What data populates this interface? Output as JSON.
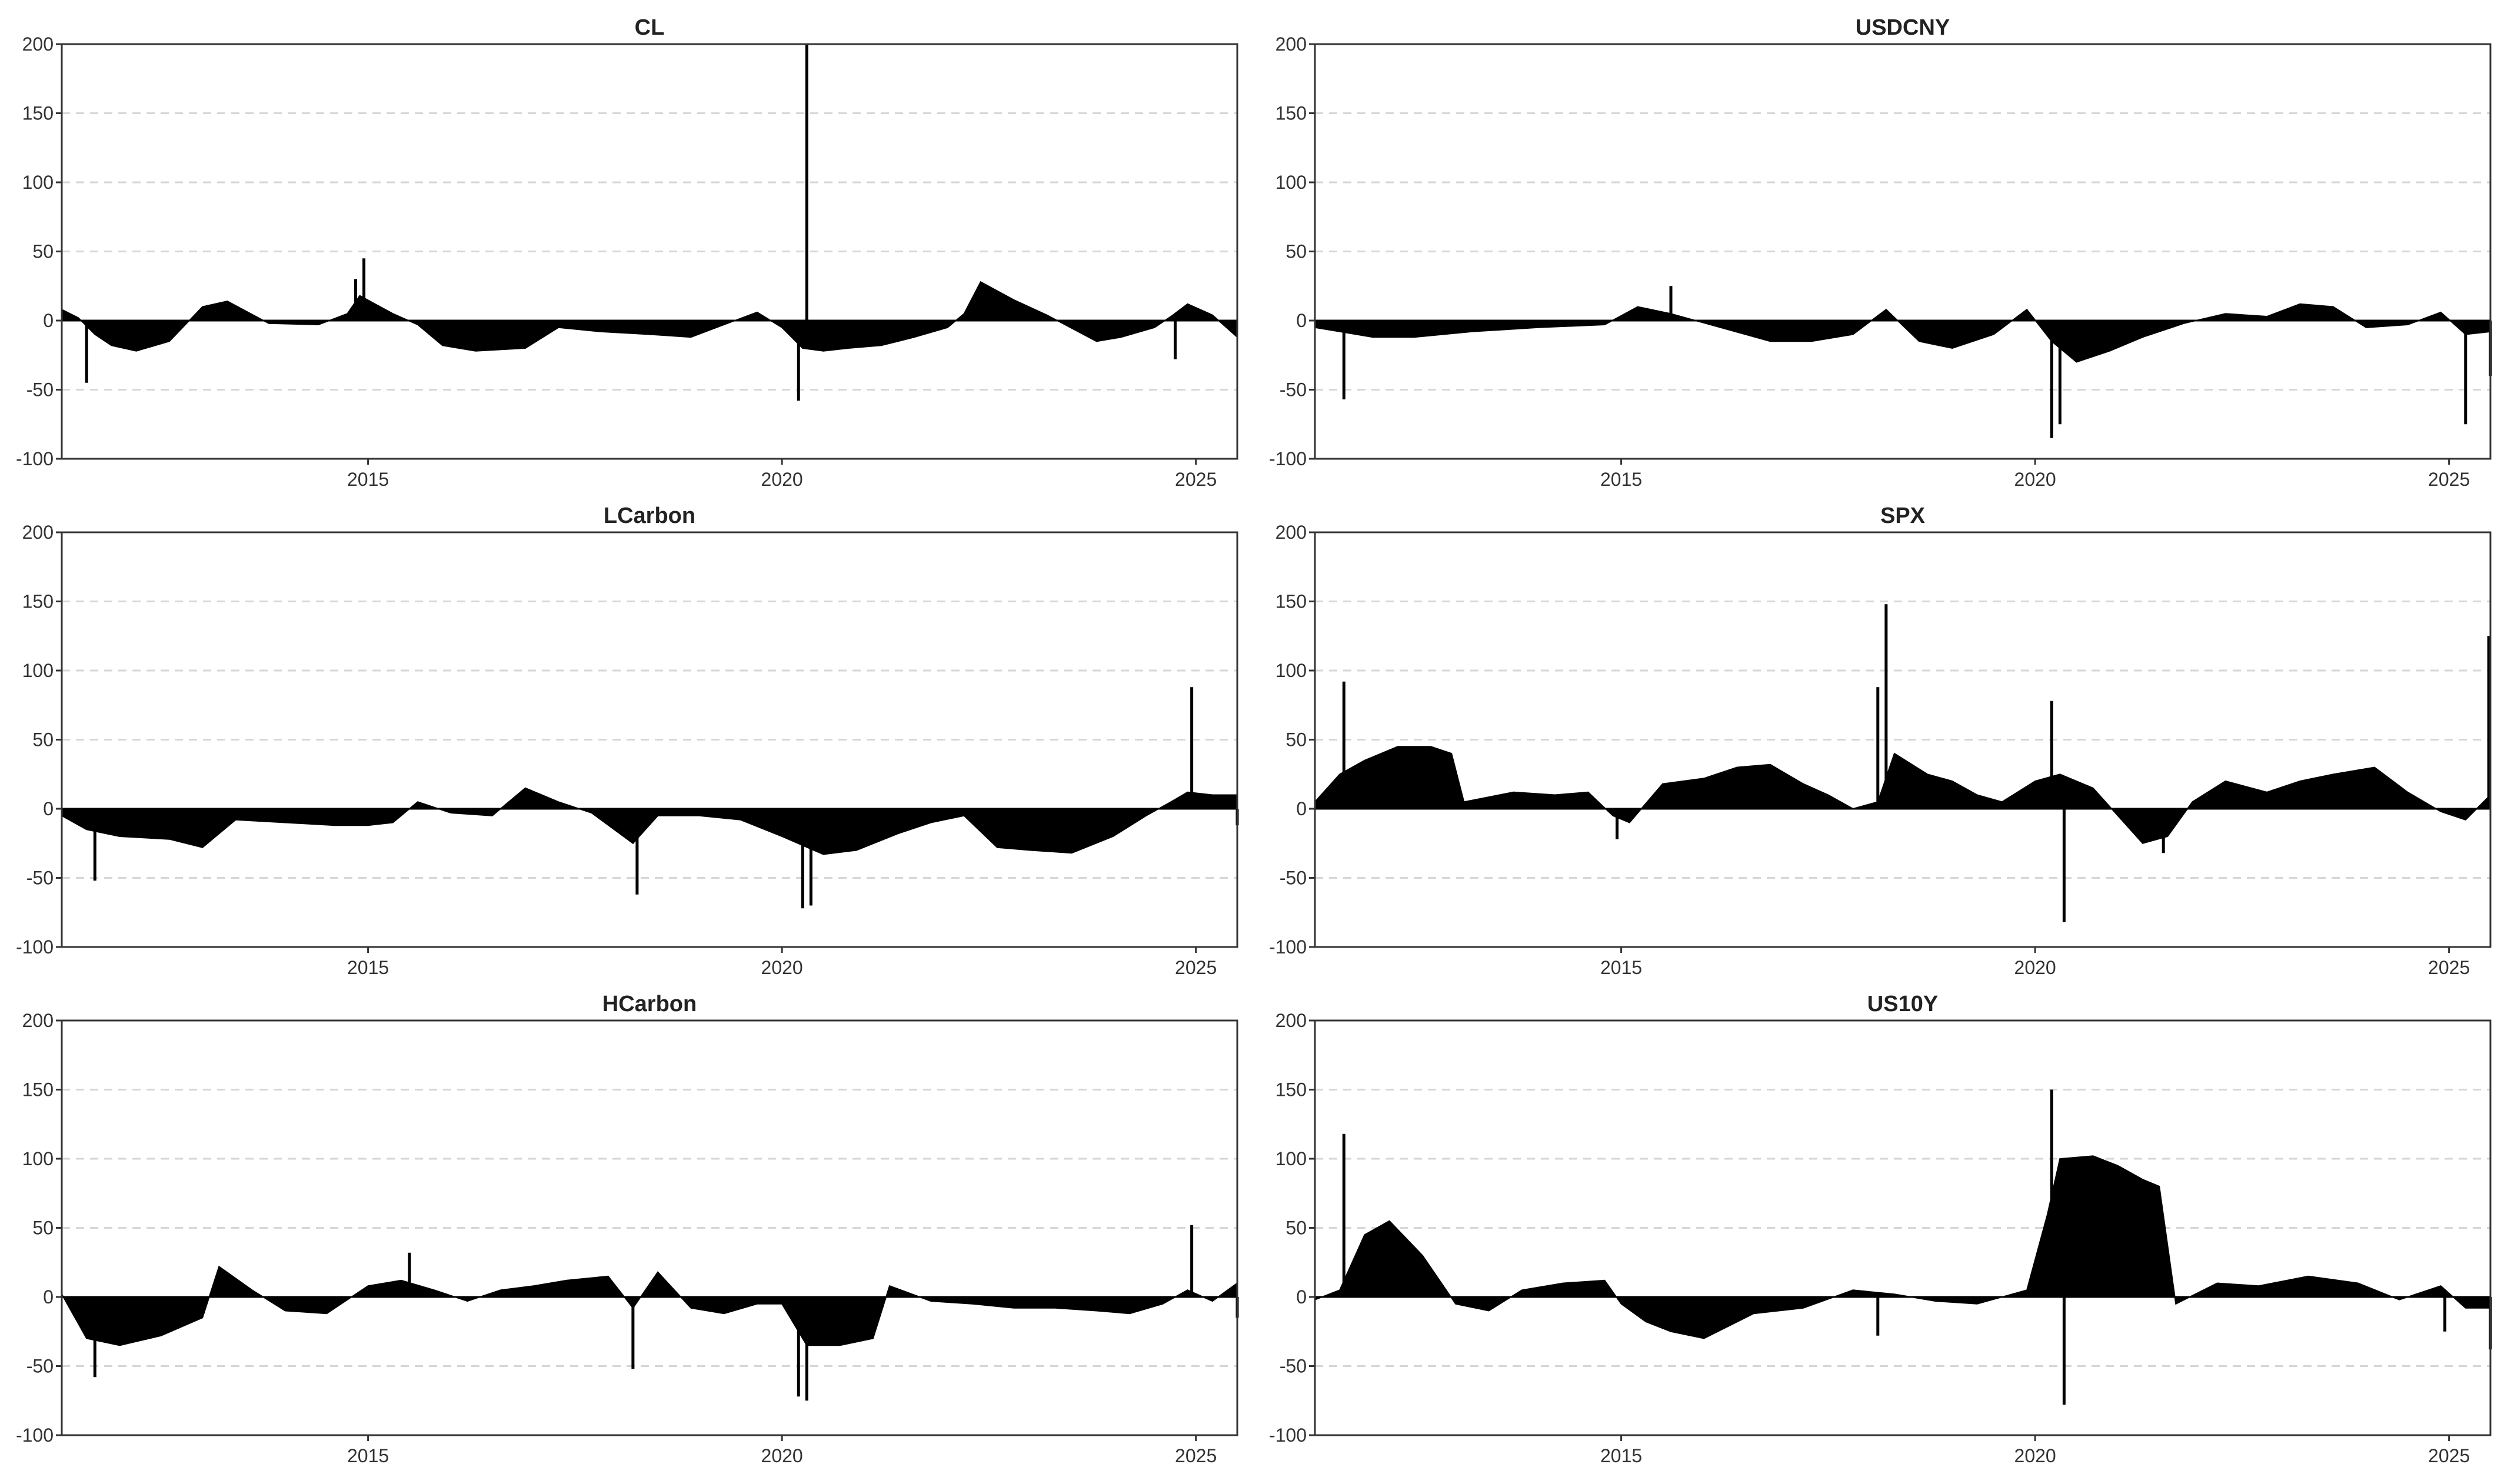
{
  "chart_data": [
    {
      "type": "area",
      "title": "CL",
      "ylim": [
        -100,
        200
      ],
      "yticks": [
        200,
        150,
        100,
        50,
        0,
        -50,
        -100
      ],
      "xlim": [
        2011.3,
        2025.5
      ],
      "xticks": [
        "2015",
        "2020",
        "2025"
      ],
      "grid": "horizontal-dashed",
      "x": [
        2011.3,
        2011.5,
        2011.7,
        2011.9,
        2012.2,
        2012.6,
        2013.0,
        2013.3,
        2013.8,
        2014.4,
        2014.75,
        2014.9,
        2015.3,
        2015.6,
        2015.9,
        2016.3,
        2016.9,
        2017.3,
        2017.8,
        2018.4,
        2018.9,
        2019.3,
        2019.7,
        2020.0,
        2020.25,
        2020.5,
        2020.8,
        2021.2,
        2021.6,
        2022.0,
        2022.2,
        2022.4,
        2022.8,
        2023.2,
        2023.8,
        2024.1,
        2024.5,
        2024.7,
        2024.9,
        2025.2,
        2025.5
      ],
      "values": [
        8,
        2,
        -10,
        -18,
        -22,
        -15,
        10,
        14,
        -2,
        -3,
        5,
        18,
        5,
        -3,
        -18,
        -22,
        -20,
        -5,
        -8,
        -10,
        -12,
        -3,
        6,
        -5,
        -20,
        -22,
        -20,
        -18,
        -12,
        -5,
        5,
        28,
        15,
        4,
        -15,
        -12,
        -5,
        3,
        12,
        4,
        -12
      ],
      "spikes": [
        {
          "x": 2011.6,
          "value": -45
        },
        {
          "x": 2014.85,
          "value": 30
        },
        {
          "x": 2014.95,
          "value": 45
        },
        {
          "x": 2020.2,
          "value": -58
        },
        {
          "x": 2020.3,
          "value": 200
        },
        {
          "x": 2024.75,
          "value": -28
        }
      ]
    },
    {
      "type": "area",
      "title": "USDCNY",
      "ylim": [
        -100,
        200
      ],
      "yticks": [
        200,
        150,
        100,
        50,
        0,
        -50,
        -100
      ],
      "xlim": [
        2011.3,
        2025.5
      ],
      "xticks": [
        "2015",
        "2020",
        "2025"
      ],
      "grid": "horizontal-dashed",
      "x": [
        2011.3,
        2011.6,
        2012.0,
        2012.5,
        2013.2,
        2014.0,
        2014.8,
        2015.2,
        2015.6,
        2016.2,
        2016.8,
        2017.3,
        2017.8,
        2018.2,
        2018.6,
        2019.0,
        2019.5,
        2019.9,
        2020.2,
        2020.5,
        2020.9,
        2021.3,
        2021.8,
        2022.3,
        2022.8,
        2023.2,
        2023.6,
        2024.0,
        2024.5,
        2024.9,
        2025.2,
        2025.5
      ],
      "values": [
        -5,
        -8,
        -12,
        -12,
        -8,
        -5,
        -3,
        10,
        5,
        -5,
        -15,
        -15,
        -10,
        8,
        -15,
        -20,
        -10,
        8,
        -15,
        -30,
        -22,
        -12,
        -2,
        5,
        3,
        12,
        10,
        -5,
        -3,
        6,
        -10,
        -8
      ],
      "spikes": [
        {
          "x": 2011.65,
          "value": -57
        },
        {
          "x": 2015.6,
          "value": 25
        },
        {
          "x": 2020.2,
          "value": -85
        },
        {
          "x": 2020.3,
          "value": -75
        },
        {
          "x": 2025.2,
          "value": -75
        },
        {
          "x": 2025.5,
          "value": -40
        }
      ]
    },
    {
      "type": "area",
      "title": "LCarbon",
      "ylim": [
        -100,
        200
      ],
      "yticks": [
        200,
        150,
        100,
        50,
        0,
        -50,
        -100
      ],
      "xlim": [
        2011.3,
        2025.5
      ],
      "xticks": [
        "2015",
        "2020",
        "2025"
      ],
      "grid": "horizontal-dashed",
      "x": [
        2011.3,
        2011.6,
        2012.0,
        2012.6,
        2013.0,
        2013.4,
        2014.0,
        2014.6,
        2015.0,
        2015.3,
        2015.6,
        2016.0,
        2016.5,
        2016.9,
        2017.3,
        2017.7,
        2018.2,
        2018.5,
        2019.0,
        2019.5,
        2020.0,
        2020.5,
        2020.9,
        2021.4,
        2021.8,
        2022.2,
        2022.6,
        2023.0,
        2023.5,
        2024.0,
        2024.4,
        2024.7,
        2024.9,
        2025.2,
        2025.5
      ],
      "values": [
        -5,
        -15,
        -20,
        -22,
        -28,
        -8,
        -10,
        -12,
        -12,
        -10,
        5,
        -3,
        -5,
        15,
        5,
        -3,
        -25,
        -5,
        -5,
        -8,
        -20,
        -33,
        -30,
        -18,
        -10,
        -5,
        -28,
        -30,
        -32,
        -20,
        -5,
        5,
        12,
        10,
        10
      ],
      "spikes": [
        {
          "x": 2011.7,
          "value": -52
        },
        {
          "x": 2018.25,
          "value": -62
        },
        {
          "x": 2020.25,
          "value": -72
        },
        {
          "x": 2020.35,
          "value": -70
        },
        {
          "x": 2024.95,
          "value": 88
        },
        {
          "x": 2025.5,
          "value": -12
        }
      ]
    },
    {
      "type": "area",
      "title": "SPX",
      "ylim": [
        -100,
        200
      ],
      "yticks": [
        200,
        150,
        100,
        50,
        0,
        -50,
        -100
      ],
      "xlim": [
        2011.3,
        2025.5
      ],
      "xticks": [
        "2015",
        "2020",
        "2025"
      ],
      "grid": "horizontal-dashed",
      "x": [
        2011.3,
        2011.6,
        2011.9,
        2012.3,
        2012.7,
        2012.95,
        2013.1,
        2013.7,
        2014.2,
        2014.6,
        2014.9,
        2015.1,
        2015.5,
        2016.0,
        2016.4,
        2016.8,
        2017.2,
        2017.5,
        2017.8,
        2018.1,
        2018.3,
        2018.7,
        2019.0,
        2019.3,
        2019.6,
        2020.0,
        2020.3,
        2020.7,
        2021.0,
        2021.3,
        2021.6,
        2021.9,
        2022.3,
        2022.8,
        2023.2,
        2023.6,
        2024.1,
        2024.5,
        2024.9,
        2025.2,
        2025.5
      ],
      "values": [
        5,
        25,
        35,
        45,
        45,
        40,
        5,
        12,
        10,
        12,
        -5,
        -10,
        18,
        22,
        30,
        32,
        18,
        10,
        0,
        5,
        40,
        25,
        20,
        10,
        5,
        20,
        25,
        15,
        -5,
        -25,
        -20,
        5,
        20,
        12,
        20,
        25,
        30,
        12,
        -2,
        -8,
        10
      ],
      "spikes": [
        {
          "x": 2011.65,
          "value": 92
        },
        {
          "x": 2014.95,
          "value": -22
        },
        {
          "x": 2018.2,
          "value": 148
        },
        {
          "x": 2018.1,
          "value": 88
        },
        {
          "x": 2020.2,
          "value": 78
        },
        {
          "x": 2020.35,
          "value": -82
        },
        {
          "x": 2021.55,
          "value": -32
        },
        {
          "x": 2025.48,
          "value": 125
        }
      ]
    },
    {
      "type": "area",
      "title": "HCarbon",
      "ylim": [
        -100,
        200
      ],
      "yticks": [
        200,
        150,
        100,
        50,
        0,
        -50,
        -100
      ],
      "xlim": [
        2011.3,
        2025.5
      ],
      "xticks": [
        "2015",
        "2020",
        "2025"
      ],
      "grid": "horizontal-dashed",
      "x": [
        2011.3,
        2011.6,
        2012.0,
        2012.5,
        2013.0,
        2013.2,
        2013.6,
        2014.0,
        2014.5,
        2015.0,
        2015.4,
        2015.8,
        2016.2,
        2016.6,
        2017.0,
        2017.4,
        2017.9,
        2018.2,
        2018.5,
        2018.9,
        2019.3,
        2019.7,
        2020.0,
        2020.3,
        2020.7,
        2021.1,
        2021.3,
        2021.8,
        2022.3,
        2022.8,
        2023.3,
        2023.8,
        2024.2,
        2024.6,
        2024.9,
        2025.2,
        2025.5
      ],
      "values": [
        2,
        -30,
        -35,
        -28,
        -15,
        22,
        5,
        -10,
        -12,
        8,
        12,
        5,
        -3,
        5,
        8,
        12,
        15,
        -8,
        18,
        -8,
        -12,
        -5,
        -5,
        -35,
        -35,
        -30,
        8,
        -3,
        -5,
        -8,
        -8,
        -10,
        -12,
        -5,
        5,
        -3,
        10
      ],
      "spikes": [
        {
          "x": 2011.7,
          "value": -58
        },
        {
          "x": 2015.5,
          "value": 32
        },
        {
          "x": 2018.2,
          "value": -52
        },
        {
          "x": 2020.2,
          "value": -72
        },
        {
          "x": 2020.3,
          "value": -75
        },
        {
          "x": 2024.95,
          "value": 52
        },
        {
          "x": 2025.5,
          "value": -15
        }
      ]
    },
    {
      "type": "area",
      "title": "US10Y",
      "ylim": [
        -100,
        200
      ],
      "yticks": [
        200,
        150,
        100,
        50,
        0,
        -50,
        -100
      ],
      "xlim": [
        2011.3,
        2025.5
      ],
      "xticks": [
        "2015",
        "2020",
        "2025"
      ],
      "grid": "horizontal-dashed",
      "x": [
        2011.3,
        2011.6,
        2011.9,
        2012.2,
        2012.6,
        2013.0,
        2013.4,
        2013.8,
        2014.3,
        2014.8,
        2015.0,
        2015.3,
        2015.6,
        2016.0,
        2016.6,
        2017.2,
        2017.8,
        2018.3,
        2018.8,
        2019.3,
        2019.9,
        2020.15,
        2020.3,
        2020.7,
        2021.0,
        2021.3,
        2021.5,
        2021.7,
        2022.2,
        2022.7,
        2023.3,
        2023.9,
        2024.4,
        2024.9,
        2025.2,
        2025.5
      ],
      "values": [
        -2,
        5,
        45,
        55,
        30,
        -5,
        -10,
        5,
        10,
        12,
        -5,
        -18,
        -25,
        -30,
        -12,
        -8,
        5,
        2,
        -3,
        -5,
        5,
        60,
        100,
        102,
        95,
        85,
        80,
        -5,
        10,
        8,
        15,
        10,
        -2,
        8,
        -8,
        -8
      ],
      "spikes": [
        {
          "x": 2011.65,
          "value": 118
        },
        {
          "x": 2018.1,
          "value": -28
        },
        {
          "x": 2020.2,
          "value": 150
        },
        {
          "x": 2020.35,
          "value": -78
        },
        {
          "x": 2024.95,
          "value": -25
        },
        {
          "x": 2025.5,
          "value": -38
        }
      ]
    }
  ]
}
